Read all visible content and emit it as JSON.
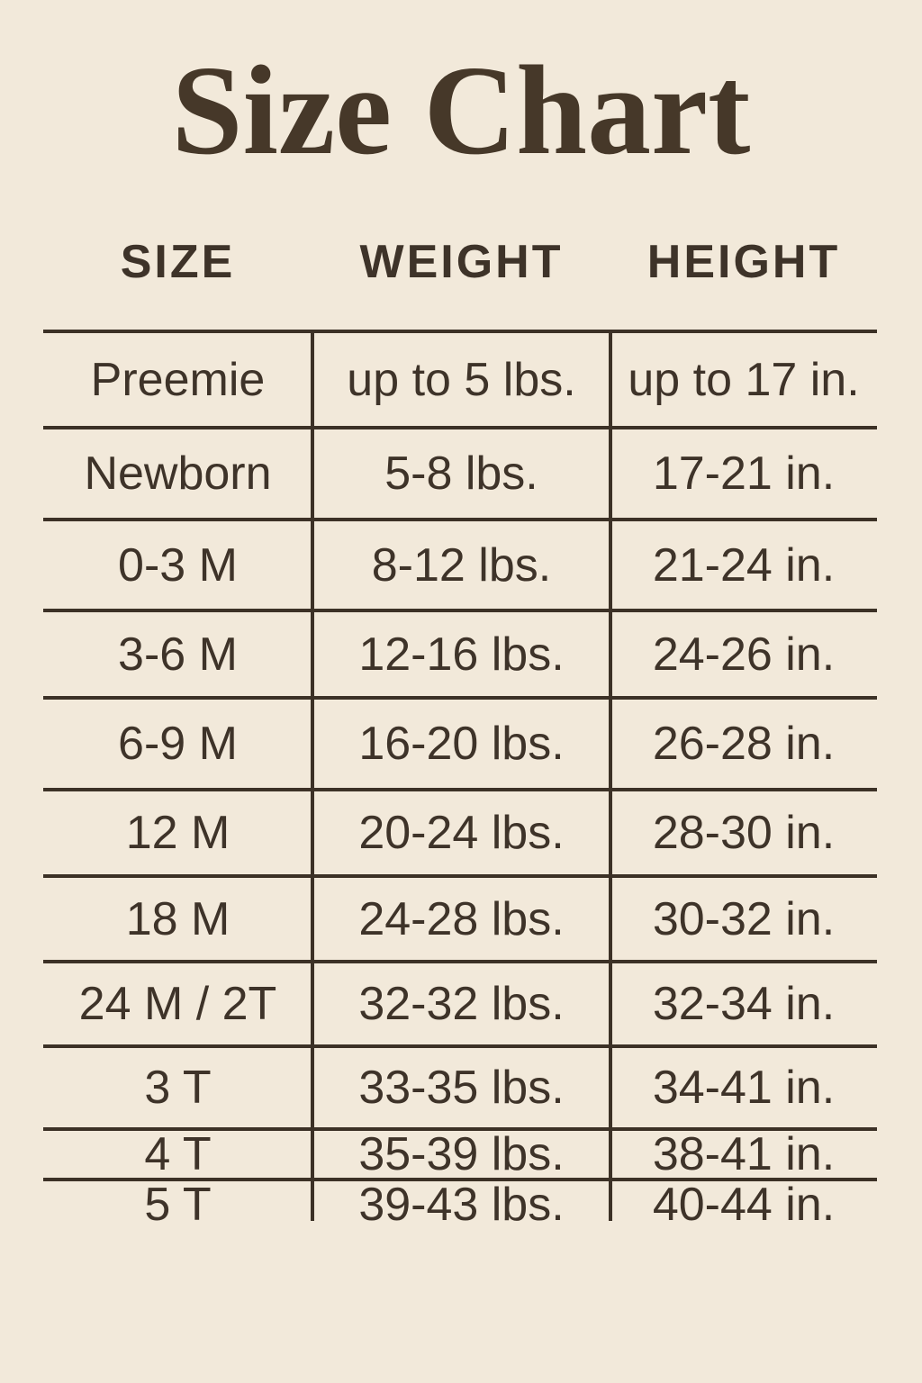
{
  "chart_data": {
    "type": "table",
    "title": "Size Chart",
    "columns": [
      "SIZE",
      "WEIGHT",
      "HEIGHT"
    ],
    "rows": [
      [
        "Preemie",
        "up to 5 lbs.",
        "up to 17 in."
      ],
      [
        "Newborn",
        "5-8 lbs.",
        "17-21 in."
      ],
      [
        "0-3 M",
        "8-12 lbs.",
        "21-24 in."
      ],
      [
        "3-6 M",
        "12-16 lbs.",
        "24-26 in."
      ],
      [
        "6-9 M",
        "16-20 lbs.",
        "26-28 in."
      ],
      [
        "12 M",
        "20-24 lbs.",
        "28-30 in."
      ],
      [
        "18 M",
        "24-28 lbs.",
        "30-32 in."
      ],
      [
        "24 M / 2T",
        "32-32 lbs.",
        "32-34 in."
      ],
      [
        "3 T",
        "33-35 lbs.",
        "34-41 in."
      ],
      [
        "4 T",
        "35-39 lbs.",
        "38-41 in."
      ],
      [
        "5 T",
        "39-43 lbs.",
        "40-44 in."
      ]
    ],
    "layout_hints": {
      "grid": "horizontal rules between rows, two inner vertical dividers, no outer border, no bottom rule"
    }
  },
  "colors": {
    "background": "#f2e9da",
    "text": "#3e3329",
    "line": "#3c3126",
    "title_text": "#463829"
  }
}
